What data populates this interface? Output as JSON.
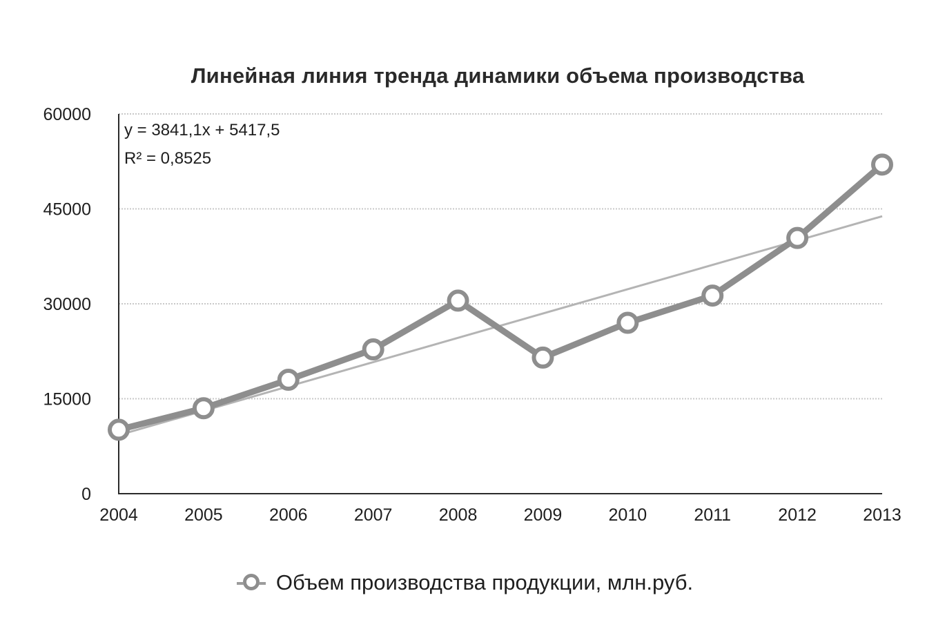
{
  "chart_data": {
    "type": "line",
    "title": "Линейная линия тренда динамики объема производства",
    "xlabel": "",
    "ylabel": "",
    "categories": [
      "2004",
      "2005",
      "2006",
      "2007",
      "2008",
      "2009",
      "2010",
      "2011",
      "2012",
      "2013"
    ],
    "ylim": [
      0,
      60000
    ],
    "yticks": [
      "0",
      "15000",
      "30000",
      "45000",
      "60000"
    ],
    "grid": true,
    "series": [
      {
        "name": "Объем производства продукции, млн.руб.",
        "values": [
          10100,
          13500,
          18000,
          22800,
          30500,
          21500,
          27000,
          31300,
          40400,
          52000
        ],
        "color": "#8e8e8e"
      }
    ],
    "trendline": {
      "type": "linear",
      "slope": 3841.1,
      "intercept": 5417.5,
      "equation": "y = 3841,1x + 5417,5",
      "r2": "R² = 0,8525",
      "color": "#b4b4b4"
    },
    "legend_position": "bottom"
  }
}
